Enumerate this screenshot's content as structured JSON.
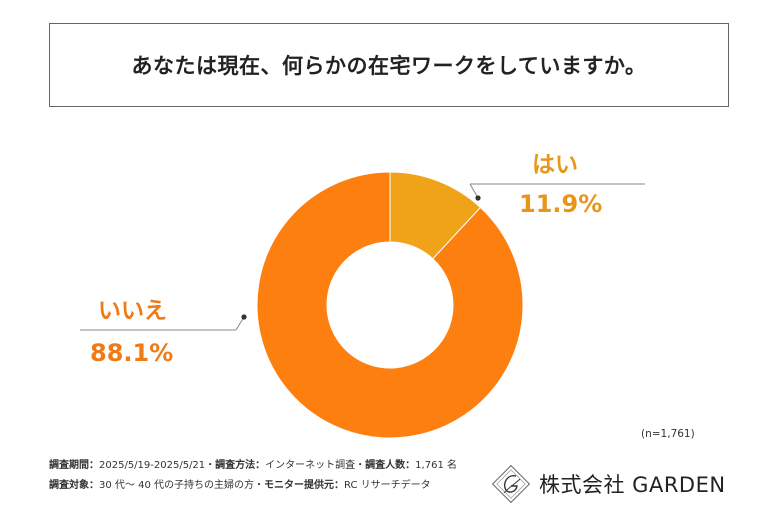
{
  "title": "あなたは現在、何らかの在宅ワークをしていますか。",
  "chart_data": {
    "type": "pie",
    "donut": true,
    "slices": [
      {
        "label": "はい",
        "value": 11.9,
        "value_label": "11.9%",
        "color": "#F0A318",
        "label_color": "#E8961A"
      },
      {
        "label": "いいえ",
        "value": 88.1,
        "value_label": "88.1%",
        "color": "#FD7F10",
        "label_color": "#F07A14"
      }
    ]
  },
  "sample_note": "(n=1,761)",
  "footer": {
    "period_label": "調査期間：",
    "period_value": "2025/5/19-2025/5/21",
    "method_label": "調査方法：",
    "method_value": "インターネット調査",
    "count_label": "調査人数：",
    "count_value": "1,761 名",
    "target_label": "調査対象：",
    "target_value": "30 代～ 40 代の子持ちの主婦の方",
    "provider_label": "モニター提供元：",
    "provider_value": "RC リサーチデータ",
    "separator": "・"
  },
  "logo": {
    "text": "株式会社 GARDEN"
  }
}
